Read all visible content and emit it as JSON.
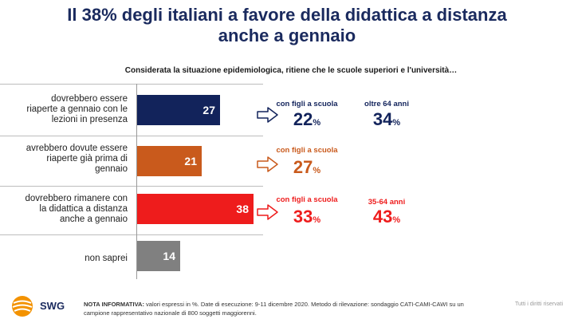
{
  "title_line1": "Il 38% degli italiani a favore della didattica a distanza",
  "title_line2": "anche a gennaio",
  "subtitle": "Considerata la situazione epidemiologica, ritiene che le scuole superiori e l'università…",
  "chart_data": {
    "type": "bar",
    "orientation": "horizontal",
    "title": "Il 38% degli italiani a favore della didattica a distanza anche a gennaio",
    "categories": [
      "dovrebbero essere riaperte a gennaio con le lezioni in presenza",
      "avrebbero dovute essere riaperte già prima di gennaio",
      "dovrebbero rimanere con la didattica a distanza anche a gennaio",
      "non saprei"
    ],
    "values": [
      27,
      21,
      38,
      14
    ],
    "colors": [
      "#12235b",
      "#c95a1c",
      "#ee1c1c",
      "#808080"
    ],
    "xlim": [
      0,
      45
    ],
    "annotations": [
      {
        "category_index": 0,
        "items": [
          {
            "label": "con figli a scuola",
            "value": "22",
            "unit": "%"
          },
          {
            "label": "oltre 64 anni",
            "value": "34",
            "unit": "%"
          }
        ],
        "color": "#12235b"
      },
      {
        "category_index": 1,
        "items": [
          {
            "label": "con figli a scuola",
            "value": "27",
            "unit": "%"
          }
        ],
        "color": "#c95a1c"
      },
      {
        "category_index": 2,
        "items": [
          {
            "label": "con figli a scuola",
            "value": "33",
            "unit": "%"
          },
          {
            "label": "35-64 anni",
            "value": "43",
            "unit": "%"
          }
        ],
        "color": "#ee1c1c"
      }
    ]
  },
  "labels": {
    "row0": [
      "dovrebbero essere",
      "riaperte a gennaio con le",
      "lezioni in presenza"
    ],
    "row1": [
      "avrebbero dovute essere",
      "riaperte già prima di",
      "gennaio"
    ],
    "row2": [
      "dovrebbero rimanere con",
      "la didattica a distanza",
      "anche a gennaio"
    ],
    "row3": [
      "non saprei"
    ]
  },
  "footer": {
    "brand": "SWG",
    "note_bold": "NOTA INFORMATIVA:",
    "note_text": " valori espressi in %. Date di esecuzione: 9-11 dicembre 2020. Metodo di rilevazione: sondaggio CATI-CAMI-CAWI su un campione rappresentativo nazionale di 800 soggetti maggiorenni.",
    "rights": "Tutti i diritti riservati"
  },
  "icons": {
    "arrow": "outline-right-arrow-icon",
    "logo": "swg-globe-logo"
  }
}
